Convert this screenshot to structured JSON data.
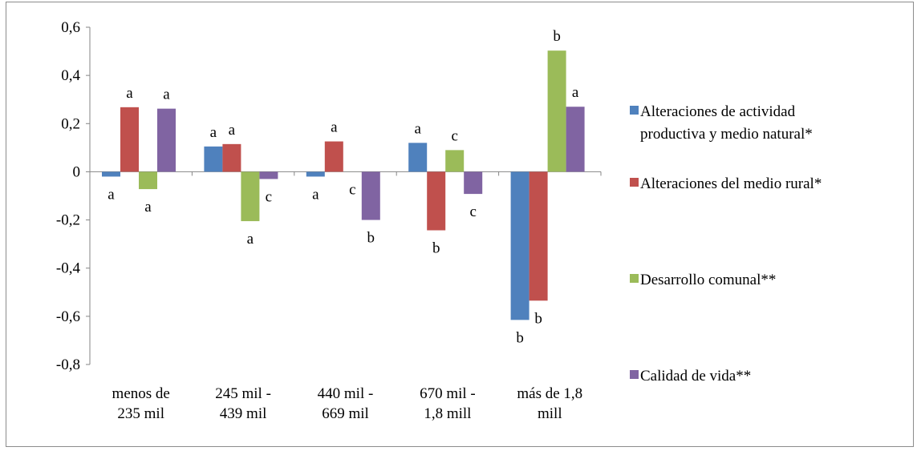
{
  "chart_data": {
    "type": "bar",
    "categories": [
      [
        "menos de",
        "235 mil"
      ],
      [
        "245 mil -",
        "439 mil"
      ],
      [
        "440 mil -",
        "669 mil"
      ],
      [
        "670 mil -",
        "1,8 mill"
      ],
      [
        "más de 1,8",
        "mill"
      ]
    ],
    "series": [
      {
        "name": "Alteraciones de actividad productiva y medio natural*",
        "legend_lines": [
          "Alteraciones de actividad",
          "productiva y medio natural*"
        ],
        "color": "#4f81bd",
        "values": [
          -0.02,
          0.105,
          -0.02,
          0.12,
          -0.615
        ],
        "letters": [
          "a",
          "a",
          "a",
          "a",
          "b"
        ]
      },
      {
        "name": "Alteraciones del medio rural*",
        "legend_lines": [
          "Alteraciones del medio rural*"
        ],
        "color": "#c0504d",
        "values": [
          0.268,
          0.115,
          0.126,
          -0.243,
          -0.535
        ],
        "letters": [
          "a",
          "a",
          "a",
          "b",
          "b"
        ]
      },
      {
        "name": "Desarrollo comunal**",
        "legend_lines": [
          "Desarrollo comunal**"
        ],
        "color": "#9bbb59",
        "values": [
          -0.072,
          -0.205,
          0.0,
          0.09,
          0.503
        ],
        "letters": [
          "a",
          "a",
          "c",
          "c",
          "b"
        ]
      },
      {
        "name": "Calidad de vida**",
        "legend_lines": [
          "Calidad de vida**"
        ],
        "color": "#8064a2",
        "values": [
          0.262,
          -0.03,
          -0.2,
          -0.092,
          0.27
        ],
        "letters": [
          "a",
          "c",
          "b",
          "c",
          "a"
        ]
      }
    ],
    "ylim": [
      -0.8,
      0.6
    ],
    "yticks": [
      0.6,
      0.4,
      0.2,
      0,
      -0.2,
      -0.4,
      -0.6,
      -0.8
    ],
    "ytick_labels": [
      "0,6",
      "0,4",
      "0,2",
      "0",
      "-0,2",
      "-0,4",
      "-0,6",
      "-0,8"
    ],
    "title": "",
    "xlabel": "",
    "ylabel": "",
    "grid": false,
    "legend_position": "right",
    "axis_color": "#868686"
  }
}
